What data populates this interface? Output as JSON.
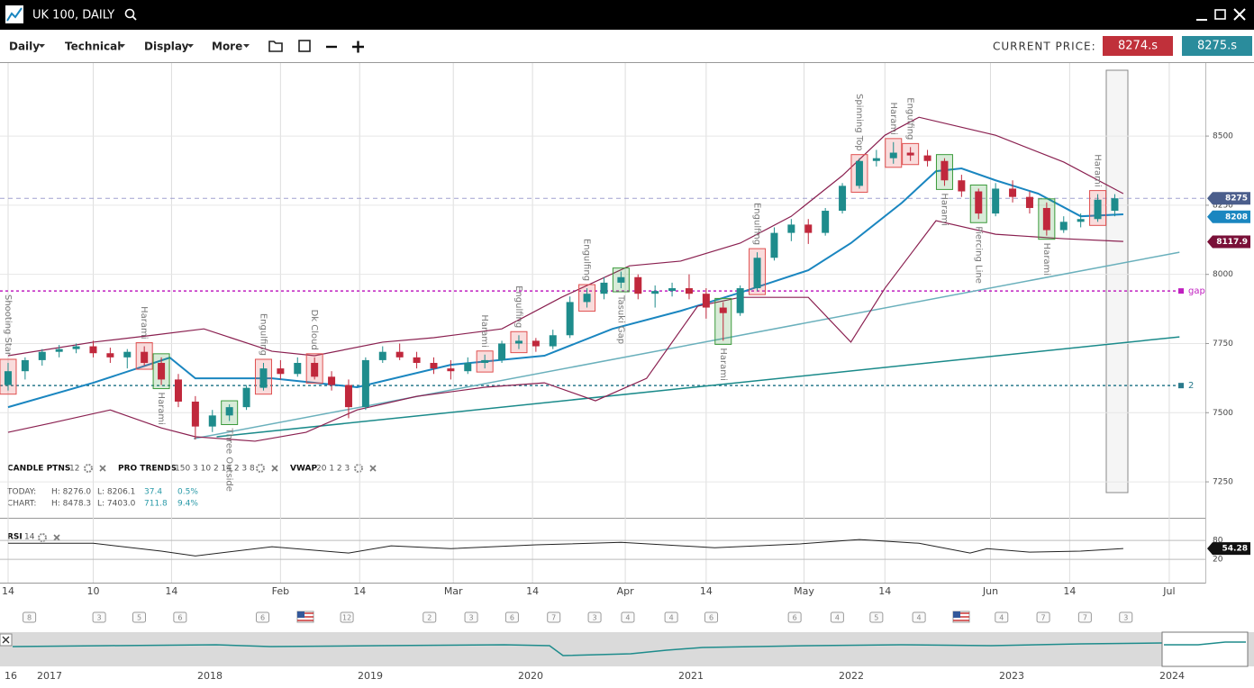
{
  "header": {
    "title": "UK 100, DAILY"
  },
  "toolbar": {
    "menus": [
      "Daily",
      "Technical",
      "Display",
      "More"
    ],
    "current_price_label": "CURRENT PRICE:",
    "bid": "8274.s",
    "ask": "8275.s"
  },
  "indicators": [
    {
      "name": "CANDLE PTNS",
      "params": "12"
    },
    {
      "name": "PRO TRENDS",
      "params": "150 3 10 2 14 2 3 8"
    },
    {
      "name": "VWAP",
      "params": "20 1 2 3"
    }
  ],
  "stats": [
    {
      "label": "TODAY:",
      "high": "H: 8276.0",
      "low": "L: 8206.1",
      "change": "37.4",
      "pct": "0.5%"
    },
    {
      "label": "CHART:",
      "high": "H: 8478.3",
      "low": "L: 7403.0",
      "change": "711.8",
      "pct": "9.4%"
    }
  ],
  "chart_data": {
    "type": "candlestick",
    "x": [
      0,
      2,
      4,
      6,
      8,
      10,
      12,
      14,
      16,
      18,
      20,
      22,
      24,
      26,
      28,
      30,
      32,
      34,
      36,
      38,
      40,
      42,
      44,
      46,
      48,
      50,
      52,
      54,
      56,
      58,
      60,
      62,
      64,
      66,
      68,
      70,
      72,
      74,
      76,
      78,
      80,
      82,
      84,
      86,
      88,
      90,
      92,
      94,
      96,
      98,
      100,
      102,
      104,
      106,
      108,
      110,
      112,
      114,
      116,
      118,
      120,
      122,
      124,
      126,
      128,
      130
    ],
    "open": [
      7600,
      7650,
      7690,
      7720,
      7730,
      7740,
      7715,
      7700,
      7720,
      7680,
      7620,
      7540,
      7450,
      7490,
      7520,
      7590,
      7660,
      7640,
      7680,
      7630,
      7600,
      7520,
      7690,
      7720,
      7700,
      7680,
      7660,
      7650,
      7680,
      7690,
      7750,
      7760,
      7740,
      7780,
      7900,
      7930,
      7970,
      7990,
      7930,
      7940,
      7950,
      7930,
      7880,
      7860,
      7950,
      8060,
      8150,
      8180,
      8150,
      8230,
      8320,
      8410,
      8420,
      8440,
      8430,
      8410,
      8340,
      8300,
      8220,
      8310,
      8280,
      8240,
      8160,
      8190,
      8200,
      8230
    ],
    "high": [
      7680,
      7700,
      7730,
      7745,
      7750,
      7760,
      7735,
      7730,
      7740,
      7700,
      7640,
      7560,
      7510,
      7530,
      7600,
      7680,
      7690,
      7700,
      7700,
      7650,
      7620,
      7700,
      7740,
      7750,
      7720,
      7700,
      7690,
      7700,
      7710,
      7760,
      7780,
      7770,
      7800,
      7920,
      7950,
      7990,
      8010,
      8000,
      7960,
      7970,
      8000,
      7950,
      7900,
      7960,
      8080,
      8170,
      8200,
      8200,
      8240,
      8330,
      8420,
      8450,
      8478,
      8460,
      8450,
      8420,
      8360,
      8310,
      8330,
      8340,
      8300,
      8260,
      8210,
      8220,
      8290,
      8290
    ],
    "low": [
      7580,
      7620,
      7670,
      7700,
      7715,
      7700,
      7680,
      7660,
      7670,
      7600,
      7520,
      7403,
      7430,
      7470,
      7510,
      7580,
      7620,
      7630,
      7620,
      7580,
      7480,
      7510,
      7680,
      7690,
      7660,
      7640,
      7620,
      7640,
      7660,
      7680,
      7730,
      7720,
      7730,
      7770,
      7880,
      7910,
      7950,
      7910,
      7880,
      7920,
      7910,
      7840,
      7760,
      7850,
      7940,
      8050,
      8120,
      8110,
      8140,
      8220,
      8310,
      8390,
      8400,
      8410,
      8390,
      8320,
      8280,
      8200,
      8210,
      8260,
      8220,
      8140,
      8150,
      8170,
      8190,
      8210
    ],
    "close": [
      7650,
      7690,
      7720,
      7730,
      7740,
      7715,
      7700,
      7720,
      7680,
      7620,
      7540,
      7450,
      7490,
      7520,
      7590,
      7660,
      7640,
      7680,
      7630,
      7600,
      7520,
      7690,
      7720,
      7700,
      7680,
      7660,
      7650,
      7680,
      7690,
      7750,
      7760,
      7740,
      7780,
      7900,
      7930,
      7970,
      7990,
      7930,
      7940,
      7950,
      7930,
      7880,
      7860,
      7950,
      8060,
      8150,
      8180,
      8150,
      8230,
      8320,
      8410,
      8420,
      8440,
      8430,
      8410,
      8340,
      8300,
      8220,
      8310,
      8280,
      8240,
      8160,
      8190,
      8200,
      8270,
      8275
    ],
    "up_color": "#1e8c8c",
    "down_color": "#c0283c",
    "xlim": [
      -0.95,
      140.64
    ],
    "xticks": [
      {
        "value": 0,
        "label": "14"
      },
      10,
      {
        "value": 19.2,
        "label": "14"
      },
      {
        "value": 32,
        "label": "Feb"
      },
      {
        "value": 41.3,
        "label": "14"
      },
      {
        "value": 52.3,
        "label": "Mar"
      },
      {
        "value": 61.6,
        "label": "14"
      },
      {
        "value": 72.5,
        "label": "Apr"
      },
      {
        "value": 82,
        "label": "14"
      },
      {
        "value": 93.5,
        "label": "May"
      },
      {
        "value": 103,
        "label": "14"
      },
      {
        "value": 115.4,
        "label": "Jun"
      },
      {
        "value": 124.7,
        "label": "14"
      },
      {
        "value": 136.4,
        "label": "Jul"
      }
    ],
    "ylim": [
      7120,
      8764
    ],
    "yticks": [
      7250,
      7500,
      7750,
      8000,
      8250,
      8500
    ],
    "lines": [
      {
        "color": "#1a86c0",
        "x": [
          0,
          10,
          19,
          22,
          31,
          41,
          52,
          63,
          71,
          79,
          86,
          94,
          99,
          105,
          109,
          112,
          116,
          121,
          126,
          131
        ],
        "values": [
          7520,
          7608,
          7699,
          7624,
          7624,
          7592,
          7673,
          7706,
          7803,
          7868,
          7934,
          8015,
          8113,
          8259,
          8373,
          8383,
          8340,
          8292,
          8210,
          8217
        ]
      },
      {
        "color": "#8a2050",
        "x": [
          0,
          10,
          17,
          23,
          31,
          36,
          44,
          50,
          58,
          65,
          73,
          79,
          86,
          92,
          98,
          103,
          107,
          116,
          124,
          131
        ],
        "values": [
          7706,
          7755,
          7780,
          7803,
          7722,
          7706,
          7755,
          7771,
          7803,
          7917,
          8031,
          8048,
          8113,
          8210,
          8357,
          8503,
          8568,
          8503,
          8406,
          8292
        ]
      },
      {
        "color": "#8a2050",
        "x": [
          0,
          5,
          12,
          18,
          22,
          29,
          35,
          41,
          48,
          56,
          63,
          69,
          75,
          81,
          86,
          94,
          99,
          103,
          109,
          116,
          124,
          131
        ],
        "values": [
          7429,
          7462,
          7510,
          7445,
          7413,
          7397,
          7429,
          7510,
          7559,
          7592,
          7608,
          7543,
          7624,
          7885,
          7917,
          7917,
          7755,
          7950,
          8194,
          8145,
          8129,
          8119
        ]
      }
    ],
    "trendlines": [
      {
        "color": "#6ab0bc",
        "x": [
          21.8,
          137.6
        ],
        "values": [
          7406,
          8080
        ]
      },
      {
        "color": "#1a8a8a",
        "x": [
          24.5,
          137.6
        ],
        "values": [
          7413,
          7774
        ]
      }
    ],
    "levels": [
      {
        "value": 8275,
        "color": "#a0a0d0"
      },
      {
        "value": 7940,
        "color": "#c020c0",
        "label": "gap"
      },
      {
        "value": 7598,
        "color": "#2a7a8c",
        "label": "2"
      }
    ],
    "price_tags": [
      {
        "value": 8275,
        "color": "#4b5e8c"
      },
      {
        "value": 8208,
        "color": "#1a86c0"
      },
      {
        "value": 8117.9,
        "color": "#7a1038"
      }
    ],
    "patterns": [
      {
        "text": "Shooting Star",
        "x": 0,
        "side": "above",
        "color": "#e05050"
      },
      {
        "text": "Harami",
        "x": 16,
        "side": "above",
        "color": "#e05050"
      },
      {
        "text": "Harami",
        "x": 18,
        "side": "below",
        "color": "#3a9a3a"
      },
      {
        "text": "Three Outside",
        "x": 26,
        "side": "below",
        "color": "#3a9a3a"
      },
      {
        "text": "Engulfing",
        "x": 30,
        "side": "above",
        "color": "#e05050"
      },
      {
        "text": "Dk Cloud",
        "x": 36,
        "side": "above",
        "color": "#e05050"
      },
      {
        "text": "Harami",
        "x": 56,
        "side": "above",
        "color": "#e05050"
      },
      {
        "text": "Engulfing",
        "x": 60,
        "side": "above",
        "color": "#e05050"
      },
      {
        "text": "Engulfing",
        "x": 68,
        "side": "above",
        "color": "#e05050"
      },
      {
        "text": "Tasuki Gap",
        "x": 72,
        "side": "below",
        "color": "#3a9a3a"
      },
      {
        "text": "Harami",
        "x": 84,
        "side": "below",
        "color": "#3a9a3a"
      },
      {
        "text": "Engulfing",
        "x": 88,
        "side": "above",
        "color": "#e05050"
      },
      {
        "text": "Spinning Top",
        "x": 100,
        "side": "above",
        "color": "#e05050"
      },
      {
        "text": "Harami",
        "x": 104,
        "side": "above",
        "color": "#e05050"
      },
      {
        "text": "Engulfing",
        "x": 106,
        "side": "above",
        "color": "#e05050"
      },
      {
        "text": "Harami",
        "x": 110,
        "side": "below",
        "color": "#3a9a3a"
      },
      {
        "text": "Piercing Line",
        "x": 114,
        "side": "below",
        "color": "#3a9a3a"
      },
      {
        "text": "Harami",
        "x": 122,
        "side": "below",
        "color": "#3a9a3a"
      },
      {
        "text": "Harami",
        "x": 128,
        "side": "above",
        "color": "#e05050"
      }
    ],
    "rsi": {
      "label": "RSI",
      "period": "14",
      "x": [
        0,
        10,
        18,
        22,
        31,
        40,
        45,
        52,
        62,
        72,
        83,
        93,
        100,
        107,
        113,
        115,
        120,
        126,
        131
      ],
      "values": [
        71,
        71,
        46,
        31,
        60,
        40,
        63,
        54,
        66,
        74,
        57,
        69,
        83,
        71,
        40,
        54,
        43,
        46,
        54.28
      ],
      "value_label": "54.28",
      "ylim": [
        -48,
        146
      ],
      "yticks": [
        80,
        20
      ]
    },
    "events": [
      {
        "x": 2.5,
        "label": "8"
      },
      {
        "x": 10.7,
        "label": "3"
      },
      {
        "x": 15.4,
        "label": "5"
      },
      {
        "x": 20.2,
        "label": "6"
      },
      {
        "x": 29.9,
        "label": "6"
      },
      {
        "x": 39.8,
        "label": "12"
      },
      {
        "x": 49.5,
        "label": "2"
      },
      {
        "x": 54.4,
        "label": "3"
      },
      {
        "x": 59.2,
        "label": "6"
      },
      {
        "x": 64.1,
        "label": "7"
      },
      {
        "x": 68.9,
        "label": "3"
      },
      {
        "x": 72.8,
        "label": "4"
      },
      {
        "x": 77.9,
        "label": "4"
      },
      {
        "x": 82.6,
        "label": "6"
      },
      {
        "x": 92.4,
        "label": "6"
      },
      {
        "x": 97.4,
        "label": "4"
      },
      {
        "x": 102,
        "label": "5"
      },
      {
        "x": 107,
        "label": "4"
      },
      {
        "x": 116.7,
        "label": "4"
      },
      {
        "x": 121.6,
        "label": "7"
      },
      {
        "x": 126.5,
        "label": "7"
      },
      {
        "x": 131.3,
        "label": "3"
      }
    ],
    "navigator_years": [
      "16",
      "2017",
      "2018",
      "2019",
      "2020",
      "2021",
      "2022",
      "2023",
      "2024"
    ]
  }
}
